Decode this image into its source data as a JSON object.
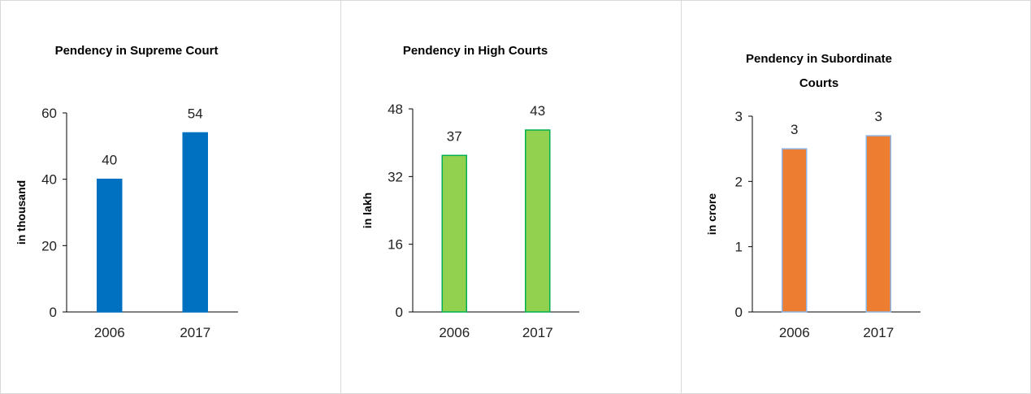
{
  "chart_data": [
    {
      "type": "bar",
      "title": [
        "Pendency in Supreme Court"
      ],
      "ylabel": "in thousand",
      "xlabel": "",
      "categories": [
        "2006",
        "2017"
      ],
      "values": [
        40,
        54
      ],
      "data_labels": [
        "40",
        "54"
      ],
      "ylim": [
        0,
        60
      ],
      "yticks": [
        0,
        20,
        40,
        60
      ],
      "bar_color": "#0070c0",
      "bar_edge": "#0070c0",
      "grid": false
    },
    {
      "type": "bar",
      "title": [
        "Pendency in High Courts"
      ],
      "ylabel": "in lakh",
      "xlabel": "",
      "categories": [
        "2006",
        "2017"
      ],
      "values": [
        37,
        43
      ],
      "data_labels": [
        "37",
        "43"
      ],
      "ylim": [
        0,
        48
      ],
      "yticks": [
        0,
        16,
        32,
        48
      ],
      "bar_color": "#92d050",
      "bar_edge": "#00b050",
      "grid": false
    },
    {
      "type": "bar",
      "title": [
        "Pendency in Subordinate",
        "Courts"
      ],
      "ylabel": "in crore",
      "xlabel": "",
      "categories": [
        "2006",
        "2017"
      ],
      "values": [
        2.5,
        2.7
      ],
      "data_labels": [
        "3",
        "3"
      ],
      "ylim": [
        0,
        3
      ],
      "yticks": [
        0,
        1,
        2,
        3
      ],
      "bar_color": "#ed7d31",
      "bar_edge": "#8eb4e3",
      "grid": false
    }
  ]
}
